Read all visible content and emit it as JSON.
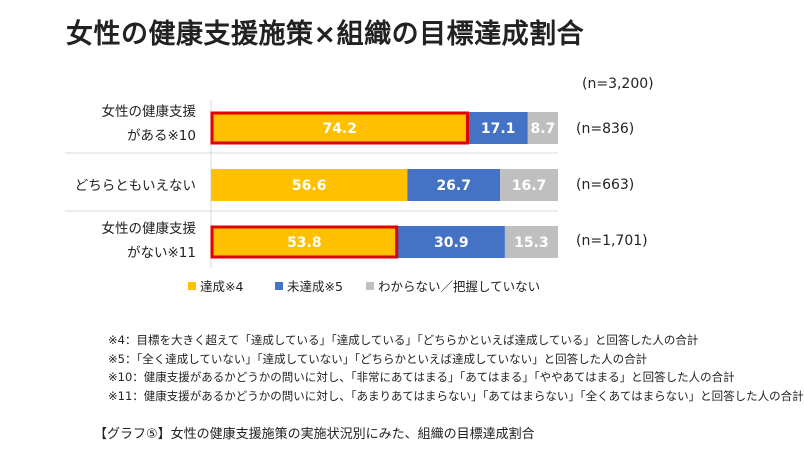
{
  "title": "女性の健康支援施策×組織の目標達成割合",
  "n_total": "(n=3,200)",
  "chart_data": {
    "type": "bar",
    "orientation": "horizontal",
    "stacked": true,
    "categories": [
      "女性の健康支援がある※10",
      "どちらともいえない",
      "女性の健康支援がない※11"
    ],
    "category_lines": [
      [
        "女性の健康支援",
        "がある※10"
      ],
      [
        "どちらともいえない"
      ],
      [
        "女性の健康支援",
        "がない※11"
      ]
    ],
    "n_labels": [
      "(n=836)",
      "(n=663)",
      "(n=1,701)"
    ],
    "series": [
      {
        "name": "達成※4",
        "color": "#FFC000",
        "values": [
          74.2,
          56.6,
          53.8
        ]
      },
      {
        "name": "未達成※5",
        "color": "#4472C4",
        "values": [
          17.1,
          26.7,
          30.9
        ]
      },
      {
        "name": "わからない／把握していない",
        "color": "#BFBFBF",
        "values": [
          8.7,
          16.7,
          15.3
        ]
      }
    ],
    "highlight": {
      "series": 0,
      "rows": [
        0,
        2
      ],
      "color": "#E00000"
    },
    "xlim": [
      0,
      100
    ],
    "unit": "%"
  },
  "notes": [
    "※4：目標を大きく超えて「達成している」「達成している」「どちらかといえば達成している」と回答した人の合計",
    "※5：「全く達成していない」「達成していない」「どちらかといえば達成していない」と回答した人の合計",
    "※10：健康支援があるかどうかの問いに対し、「非常にあてはまる」「あてはまる」「ややあてはまる」と回答した人の合計",
    "※11：健康支援があるかどうかの問いに対し、「あまりあてはまらない」「あてはまらない」「全くあてはまらない」と回答した人の合計"
  ],
  "caption": "【グラフ⑤】女性の健康支援施策の実施状況別にみた、組織の目標達成割合"
}
